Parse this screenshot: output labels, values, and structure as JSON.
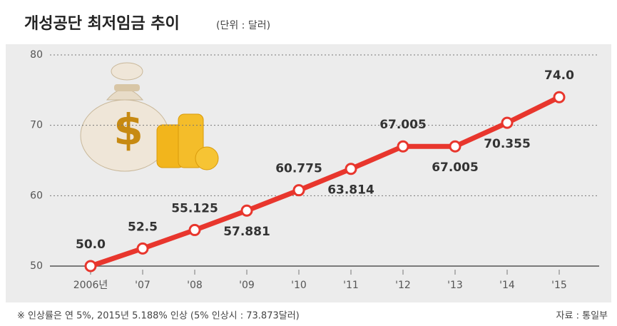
{
  "chart_data": {
    "type": "line",
    "title": "개성공단 최저임금 추이",
    "subtitle": "(단위 : 달러)",
    "categories": [
      "2006년",
      "'07",
      "'08",
      "'09",
      "'10",
      "'11",
      "'12",
      "'13",
      "'14",
      "'15"
    ],
    "values": [
      50,
      52.5,
      55.125,
      57.881,
      60.775,
      63.814,
      67.005,
      67.005,
      70.355,
      74
    ],
    "value_labels": [
      "50.0",
      "52.5",
      "55.125",
      "57.881",
      "60.775",
      "63.814",
      "67.005",
      "67.005",
      "70.355",
      "74.0"
    ],
    "color": "#e8362d",
    "ylim": [
      50,
      80
    ],
    "yticks": [
      50,
      60,
      70,
      80
    ],
    "grid": true,
    "footnote": "※ 인상률은 연 5%, 2015년 5.188% 인상 (5% 인상시 : 73.873달러)",
    "source": "자료 : 통일부"
  }
}
